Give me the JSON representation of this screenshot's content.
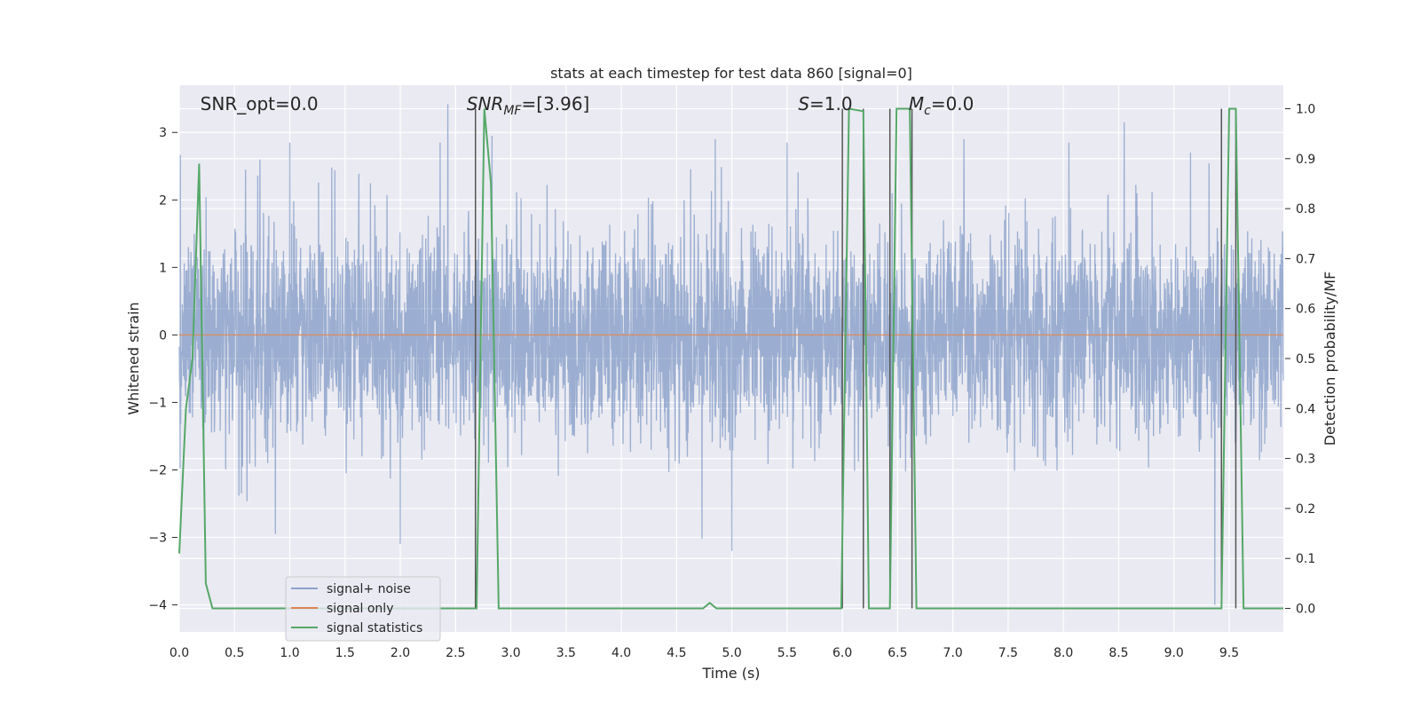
{
  "chart_data": {
    "type": "line",
    "title": "stats at each timestep for test data 860 [signal=0]",
    "xlabel": "Time (s)",
    "ylabel": "Whitened strain",
    "y2label": "Detection probability/MF",
    "xlim": [
      0.0,
      9.99
    ],
    "ylim": [
      -4.4,
      3.7
    ],
    "y2lim": [
      -0.047,
      1.047
    ],
    "xticks": [
      0.0,
      0.5,
      1.0,
      1.5,
      2.0,
      2.5,
      3.0,
      3.5,
      4.0,
      4.5,
      5.0,
      5.5,
      6.0,
      6.5,
      7.0,
      7.5,
      8.0,
      8.5,
      9.0,
      9.5
    ],
    "xtick_labels": [
      "0.0",
      "0.5",
      "1.0",
      "1.5",
      "2.0",
      "2.5",
      "3.0",
      "3.5",
      "4.0",
      "4.5",
      "5.0",
      "5.5",
      "6.0",
      "6.5",
      "7.0",
      "7.5",
      "8.0",
      "8.5",
      "9.0",
      "9.5"
    ],
    "yticks": [
      -4,
      -3,
      -2,
      -1,
      0,
      1,
      2,
      3
    ],
    "ytick_labels": [
      "−4",
      "−3",
      "−2",
      "−1",
      "0",
      "1",
      "2",
      "3"
    ],
    "y2ticks": [
      0.0,
      0.1,
      0.2,
      0.3,
      0.4,
      0.5,
      0.6,
      0.7,
      0.8,
      0.9,
      1.0
    ],
    "y2tick_labels": [
      "0.0",
      "0.1",
      "0.2",
      "0.3",
      "0.4",
      "0.5",
      "0.6",
      "0.7",
      "0.8",
      "0.9",
      "1.0"
    ],
    "grid": true,
    "legend_placement": "lower-left",
    "noise": {
      "sigma": 0.78,
      "sample_rate": 400,
      "seed": 860,
      "spikes": [
        {
          "x": 0.6,
          "y": 2.45
        },
        {
          "x": 0.73,
          "y": 2.6
        },
        {
          "x": 1.0,
          "y": 2.85
        },
        {
          "x": 2.43,
          "y": 3.42
        },
        {
          "x": 2.36,
          "y": 2.85
        },
        {
          "x": 2.83,
          "y": 2.95
        },
        {
          "x": 2.0,
          "y": -3.1
        },
        {
          "x": 1.38,
          "y": 2.48
        },
        {
          "x": 8.55,
          "y": 3.15
        },
        {
          "x": 5.5,
          "y": 2.85
        },
        {
          "x": 0.87,
          "y": -2.95
        },
        {
          "x": 5.0,
          "y": -3.2
        },
        {
          "x": 9.37,
          "y": -4.0
        },
        {
          "x": 4.85,
          "y": 2.9
        },
        {
          "x": 7.1,
          "y": 2.9
        },
        {
          "x": 8.05,
          "y": 2.85
        },
        {
          "x": 6.45,
          "y": 2.1
        },
        {
          "x": 9.15,
          "y": 2.7
        }
      ]
    },
    "series": [
      {
        "name": "signal+ noise",
        "color": "#4c72b0",
        "kind": "noise"
      },
      {
        "name": "signal only",
        "color": "#dd8452",
        "x": [
          0.0,
          9.99
        ],
        "y": [
          0.0,
          0.0
        ]
      },
      {
        "name": "signal statistics",
        "color": "#55a868",
        "axis": "y2",
        "x": [
          0.0,
          0.06,
          0.12,
          0.18,
          0.24,
          0.3,
          2.69,
          2.76,
          2.82,
          2.89,
          4.74,
          4.8,
          4.86,
          5.99,
          6.06,
          6.19,
          6.24,
          6.43,
          6.49,
          6.61,
          6.67,
          9.43,
          9.5,
          9.56,
          9.63,
          9.99
        ],
        "y": [
          0.11,
          0.4,
          0.5,
          0.89,
          0.05,
          0.0,
          0.0,
          1.0,
          0.85,
          0.0,
          0.0,
          0.011,
          0.0,
          0.0,
          1.0,
          0.995,
          0.0,
          0.0,
          1.0,
          1.0,
          0.0,
          0.0,
          1.0,
          1.0,
          0.0,
          0.0
        ]
      }
    ],
    "vlines": {
      "color": "#555555",
      "x": [
        2.68,
        6.0,
        6.19,
        6.43,
        6.63,
        9.43,
        9.56
      ]
    },
    "annotations": [
      {
        "id": "snr-opt",
        "prefix": "SNR_opt=0.0",
        "math": "",
        "sub": "",
        "suffix": "",
        "x": 0.19
      },
      {
        "id": "snr-mf",
        "prefix": "",
        "math": "SNR",
        "sub": "MF",
        "suffix": "=[3.96]",
        "x": 2.6
      },
      {
        "id": "s-stat",
        "prefix": "",
        "math": "S",
        "sub": "",
        "suffix": "=1.0",
        "x": 5.6
      },
      {
        "id": "mc",
        "prefix": "",
        "math": "M",
        "sub": "c",
        "suffix": "=0.0",
        "x": 6.6
      }
    ]
  }
}
